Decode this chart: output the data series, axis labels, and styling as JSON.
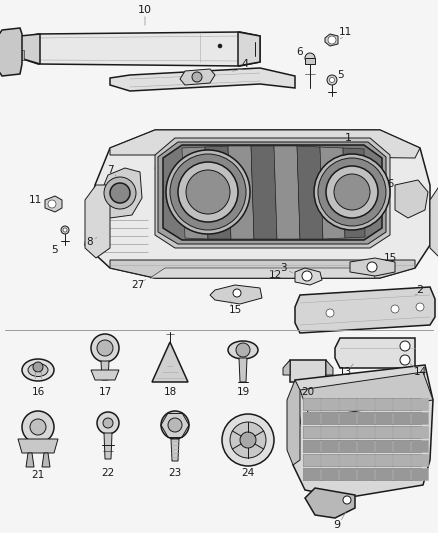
{
  "background_color": "#f5f5f5",
  "line_color": "#1a1a1a",
  "fig_width": 4.38,
  "fig_height": 5.33,
  "dpi": 100,
  "font_size": 7.5,
  "lw_main": 1.1,
  "lw_med": 0.7,
  "lw_thin": 0.4,
  "gray_fill": "#cccccc",
  "dark_gray": "#888888",
  "mid_gray": "#aaaaaa"
}
